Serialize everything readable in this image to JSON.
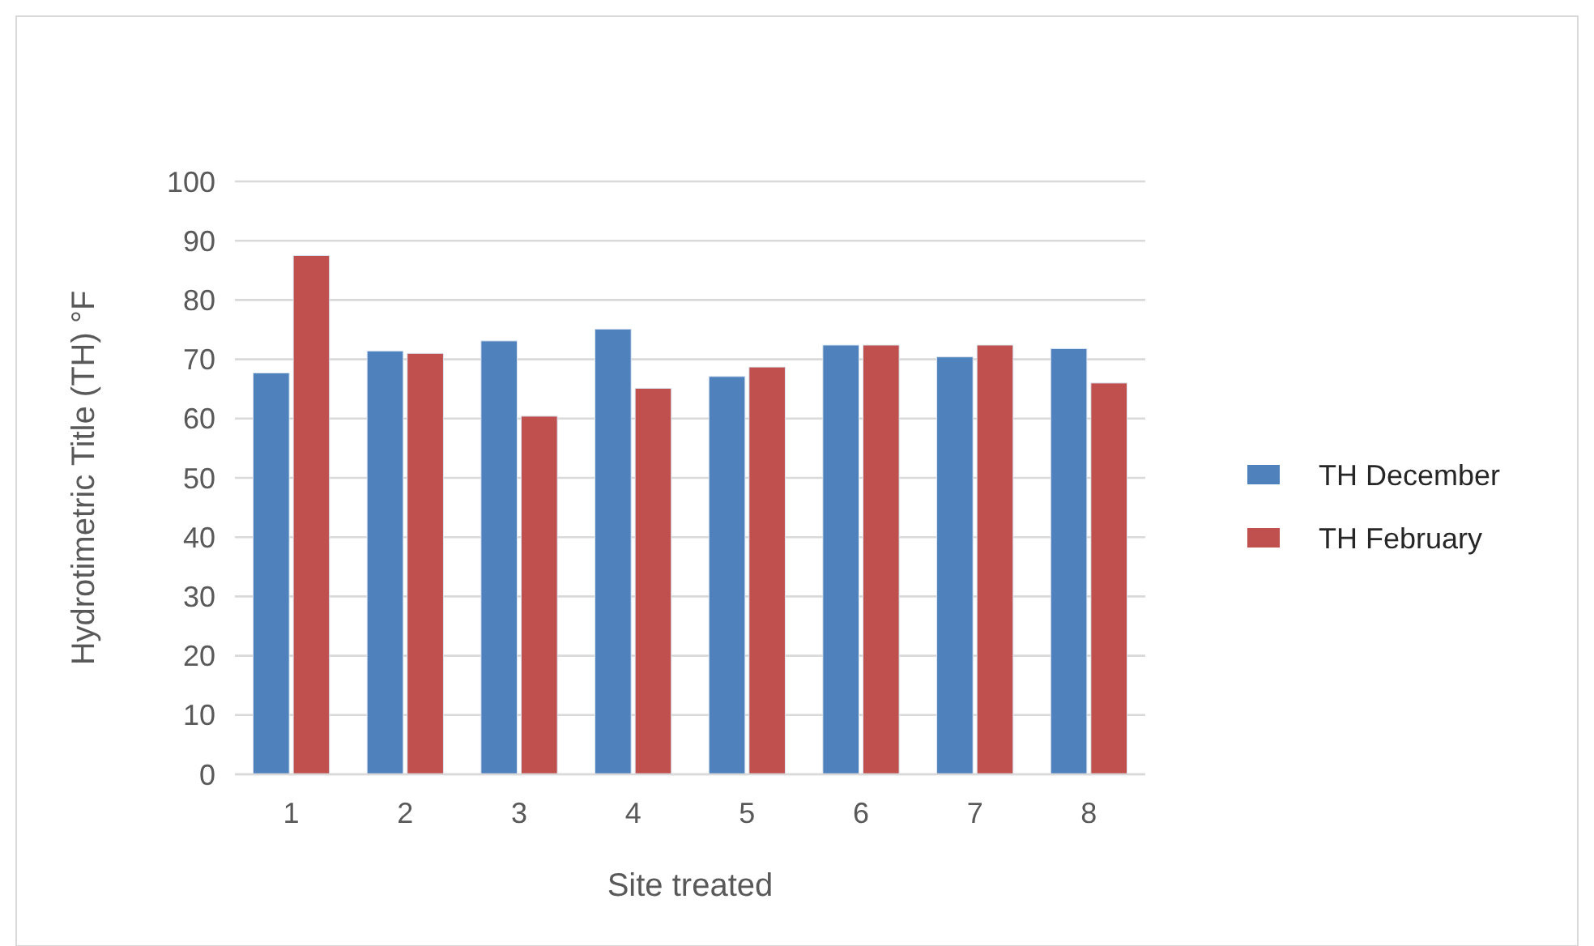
{
  "chart_data": {
    "type": "bar",
    "xlabel": "Site treated",
    "ylabel": "Hydrotimetric Title (TH)  °F",
    "categories": [
      "1",
      "2",
      "3",
      "4",
      "5",
      "6",
      "7",
      "8"
    ],
    "series": [
      {
        "name": "TH December",
        "color": "#4f81bd",
        "values": [
          67.7,
          71.4,
          73.1,
          75.1,
          67.1,
          72.4,
          70.4,
          71.8
        ]
      },
      {
        "name": "TH February",
        "color": "#c0504d",
        "values": [
          87.5,
          71,
          60.4,
          65.1,
          68.7,
          72.4,
          72.4,
          66
        ]
      }
    ],
    "ylim": [
      0,
      100
    ],
    "yticks": [
      0,
      10,
      20,
      30,
      40,
      50,
      60,
      70,
      80,
      90,
      100
    ],
    "grid": "y",
    "legend": "right"
  }
}
